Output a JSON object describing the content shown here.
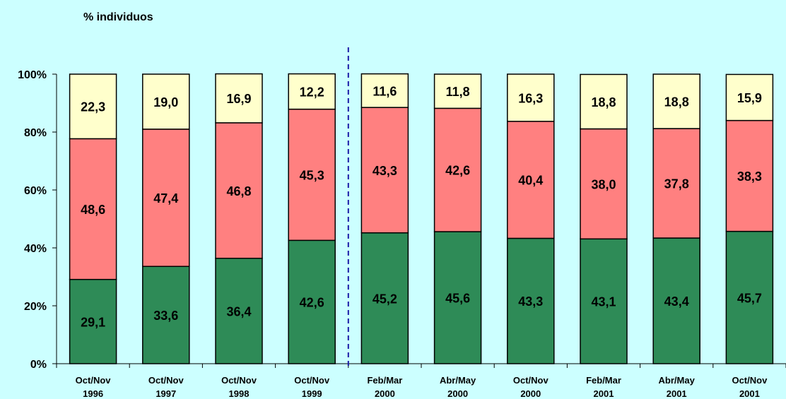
{
  "chart_data": {
    "type": "bar",
    "stacked": true,
    "ylabel": "% individuos",
    "ylim": [
      0,
      100
    ],
    "yticks": [
      "0%",
      "20%",
      "40%",
      "60%",
      "80%",
      "100%"
    ],
    "categories": [
      [
        "Oct/Nov",
        "1996"
      ],
      [
        "Oct/Nov",
        "1997"
      ],
      [
        "Oct/Nov",
        "1998"
      ],
      [
        "Oct/Nov",
        "1999"
      ],
      [
        "Feb/Mar",
        "2000"
      ],
      [
        "Abr/May",
        "2000"
      ],
      [
        "Oct/Nov",
        "2000"
      ],
      [
        "Feb/Mar",
        "2001"
      ],
      [
        "Abr/May",
        "2001"
      ],
      [
        "Oct/Nov",
        "2001"
      ]
    ],
    "series": [
      {
        "color": "#2e8b57",
        "values": [
          29.1,
          33.6,
          36.4,
          42.6,
          45.2,
          45.6,
          43.3,
          43.1,
          43.4,
          45.7
        ],
        "labels": [
          "29,1",
          "33,6",
          "36,4",
          "42,6",
          "45,2",
          "45,6",
          "43,3",
          "43,1",
          "43,4",
          "45,7"
        ]
      },
      {
        "color": "#ff8080",
        "values": [
          48.6,
          47.4,
          46.8,
          45.3,
          43.3,
          42.6,
          40.4,
          38.0,
          37.8,
          38.3
        ],
        "labels": [
          "48,6",
          "47,4",
          "46,8",
          "45,3",
          "43,3",
          "42,6",
          "40,4",
          "38,0",
          "37,8",
          "38,3"
        ]
      },
      {
        "color": "#ffffcc",
        "values": [
          22.3,
          19.0,
          16.9,
          12.2,
          11.6,
          11.8,
          16.3,
          18.8,
          18.8,
          15.9
        ],
        "labels": [
          "22,3",
          "19,0",
          "16,9",
          "12,2",
          "11,6",
          "11,8",
          "16,3",
          "18,8",
          "18,8",
          "15,9"
        ]
      }
    ],
    "divider_after_index": 3,
    "grid": false,
    "legend": "none"
  }
}
